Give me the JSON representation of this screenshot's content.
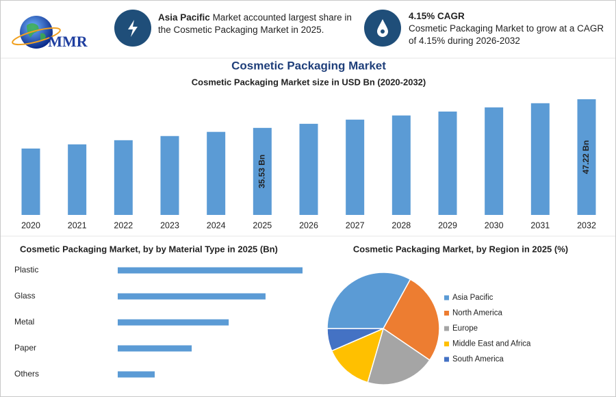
{
  "header": {
    "logo": "MMR",
    "highlights": [
      {
        "title": "Asia Pacific",
        "text": "Market accounted largest share in the Cosmetic Packaging Market in 2025."
      },
      {
        "title": "4.15% CAGR",
        "text": "Cosmetic Packaging Market to grow at a CAGR of 4.15% during 2026-2032"
      }
    ]
  },
  "chart_data": [
    {
      "type": "bar",
      "title": "Cosmetic Packaging Market",
      "subtitle": "Cosmetic Packaging Market size in USD Bn (2020-2032)",
      "categories": [
        "2020",
        "2021",
        "2022",
        "2023",
        "2024",
        "2025",
        "2026",
        "2027",
        "2028",
        "2029",
        "2030",
        "2031",
        "2032"
      ],
      "values": [
        27.1,
        28.8,
        30.5,
        32.2,
        33.9,
        35.53,
        37.2,
        38.9,
        40.6,
        42.2,
        43.9,
        45.6,
        47.22
      ],
      "value_labels": [
        null,
        null,
        null,
        null,
        null,
        "35.53 Bn",
        null,
        null,
        null,
        null,
        null,
        null,
        "47.22 Bn"
      ],
      "color": "#5b9bd5"
    },
    {
      "type": "hbar",
      "title": "Cosmetic Packaging Market, by by Material Type in 2025 (Bn)",
      "categories": [
        "Plastic",
        "Glass",
        "Metal",
        "Paper",
        "Others"
      ],
      "values": [
        11.84,
        9.47,
        7.11,
        4.74,
        2.37
      ],
      "color": "#5b9bd5"
    },
    {
      "type": "pie",
      "title": "Cosmetic Packaging Market, by Region in 2025 (%)",
      "categories": [
        "Asia Pacific",
        "North America",
        "Europe",
        "Middle East and Africa",
        "South America"
      ],
      "values": [
        33,
        26.5,
        20,
        14,
        6.5
      ],
      "colors": [
        "#5b9bd5",
        "#ed7d31",
        "#a5a5a5",
        "#ffc000",
        "#4472c4"
      ],
      "legend": "right"
    }
  ]
}
